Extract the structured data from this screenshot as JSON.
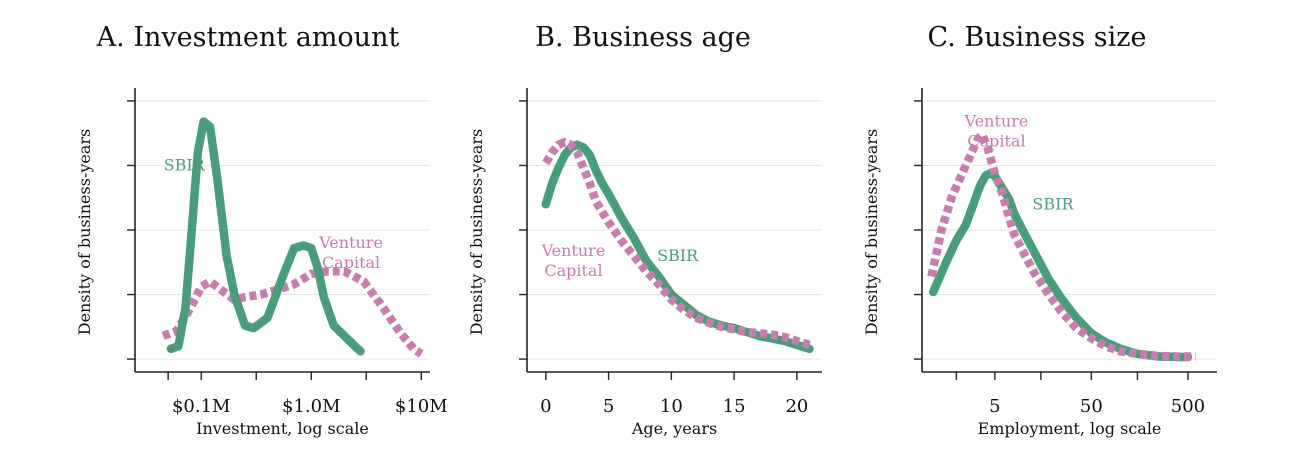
{
  "colors": {
    "sbir": "#4a9d7c",
    "venture_capital": "#c87caf"
  },
  "chart_data": [
    {
      "type": "line",
      "title": "A. Investment amount",
      "xlabel": "Investment, log scale",
      "ylabel": "Density of business-years",
      "x_scale": "log",
      "x_unit": "USD",
      "xlim": [
        25000,
        12000000
      ],
      "ylim": [
        -0.05,
        1.05
      ],
      "x_ticks": [
        {
          "value": 50000,
          "label": ""
        },
        {
          "value": 100000,
          "label": "$0.1M"
        },
        {
          "value": 316000,
          "label": ""
        },
        {
          "value": 1000000,
          "label": "$1.0M"
        },
        {
          "value": 3160000,
          "label": ""
        },
        {
          "value": 10000000,
          "label": "$10M"
        }
      ],
      "y_ticks": [
        0,
        0.25,
        0.5,
        0.75,
        1.0
      ],
      "grid": true,
      "series": [
        {
          "name": "SBIR",
          "key": "sbir",
          "style": "solid",
          "label_anchor": [
            0.07,
            0.73
          ],
          "points": [
            [
              0.053,
              0.04
            ],
            [
              0.062,
              0.05
            ],
            [
              0.072,
              0.2
            ],
            [
              0.082,
              0.5
            ],
            [
              0.093,
              0.8
            ],
            [
              0.105,
              0.92
            ],
            [
              0.12,
              0.9
            ],
            [
              0.14,
              0.7
            ],
            [
              0.17,
              0.4
            ],
            [
              0.2,
              0.25
            ],
            [
              0.25,
              0.13
            ],
            [
              0.3,
              0.12
            ],
            [
              0.4,
              0.16
            ],
            [
              0.55,
              0.32
            ],
            [
              0.7,
              0.43
            ],
            [
              0.85,
              0.44
            ],
            [
              1.0,
              0.43
            ],
            [
              1.15,
              0.35
            ],
            [
              1.3,
              0.24
            ],
            [
              1.6,
              0.13
            ],
            [
              2.0,
              0.09
            ],
            [
              2.5,
              0.05
            ],
            [
              2.8,
              0.03
            ]
          ]
        },
        {
          "name": "Venture Capital",
          "key": "venture_capital",
          "style": "dashed",
          "label_anchor": [
            2.3,
            0.43
          ],
          "points": [
            [
              0.045,
              0.09
            ],
            [
              0.06,
              0.11
            ],
            [
              0.08,
              0.2
            ],
            [
              0.1,
              0.28
            ],
            [
              0.12,
              0.3
            ],
            [
              0.15,
              0.27
            ],
            [
              0.2,
              0.23
            ],
            [
              0.25,
              0.24
            ],
            [
              0.35,
              0.25
            ],
            [
              0.5,
              0.27
            ],
            [
              0.7,
              0.29
            ],
            [
              1.0,
              0.33
            ],
            [
              1.4,
              0.34
            ],
            [
              2.0,
              0.34
            ],
            [
              3.0,
              0.3
            ],
            [
              4.5,
              0.2
            ],
            [
              6.5,
              0.1
            ],
            [
              8.5,
              0.04
            ],
            [
              10.0,
              0.02
            ]
          ]
        }
      ]
    },
    {
      "type": "line",
      "title": "B. Business age",
      "xlabel": "Age, years",
      "ylabel": "Density of business-years",
      "xlim": [
        -1.5,
        22
      ],
      "ylim": [
        -0.05,
        1.05
      ],
      "x_ticks": [
        {
          "value": 0,
          "label": "0"
        },
        {
          "value": 5,
          "label": "5"
        },
        {
          "value": 10,
          "label": "10"
        },
        {
          "value": 15,
          "label": "15"
        },
        {
          "value": 20,
          "label": "20"
        }
      ],
      "y_ticks": [
        0,
        0.25,
        0.5,
        0.75,
        1.0
      ],
      "grid": true,
      "series": [
        {
          "name": "SBIR",
          "key": "sbir",
          "style": "solid",
          "label_anchor": [
            10.5,
            0.38
          ],
          "points": [
            [
              0,
              0.6
            ],
            [
              0.5,
              0.68
            ],
            [
              1,
              0.74
            ],
            [
              1.5,
              0.79
            ],
            [
              2,
              0.82
            ],
            [
              2.5,
              0.83
            ],
            [
              3,
              0.82
            ],
            [
              3.5,
              0.79
            ],
            [
              4,
              0.73
            ],
            [
              4.5,
              0.68
            ],
            [
              5,
              0.64
            ],
            [
              6,
              0.55
            ],
            [
              7,
              0.47
            ],
            [
              8,
              0.38
            ],
            [
              9,
              0.32
            ],
            [
              10,
              0.25
            ],
            [
              11,
              0.21
            ],
            [
              12,
              0.17
            ],
            [
              13,
              0.145
            ],
            [
              14,
              0.13
            ],
            [
              15,
              0.12
            ],
            [
              16,
              0.105
            ],
            [
              17,
              0.09
            ],
            [
              18,
              0.08
            ],
            [
              19,
              0.07
            ],
            [
              20,
              0.055
            ],
            [
              21,
              0.04
            ]
          ]
        },
        {
          "name": "Venture Capital",
          "key": "venture_capital",
          "style": "dashed",
          "label_anchor": [
            2.2,
            0.4
          ],
          "points": [
            [
              0,
              0.76
            ],
            [
              0.5,
              0.8
            ],
            [
              1,
              0.83
            ],
            [
              1.5,
              0.84
            ],
            [
              2,
              0.83
            ],
            [
              2.5,
              0.8
            ],
            [
              3,
              0.74
            ],
            [
              3.5,
              0.68
            ],
            [
              4,
              0.61
            ],
            [
              5,
              0.53
            ],
            [
              6,
              0.46
            ],
            [
              7,
              0.4
            ],
            [
              8,
              0.34
            ],
            [
              9,
              0.29
            ],
            [
              10,
              0.23
            ],
            [
              11,
              0.19
            ],
            [
              12,
              0.16
            ],
            [
              13,
              0.14
            ],
            [
              14,
              0.125
            ],
            [
              15,
              0.115
            ],
            [
              16,
              0.105
            ],
            [
              17,
              0.1
            ],
            [
              18,
              0.095
            ],
            [
              19,
              0.085
            ],
            [
              20,
              0.07
            ],
            [
              21,
              0.055
            ]
          ]
        }
      ]
    },
    {
      "type": "line",
      "title": "C. Business size",
      "xlabel": "Employment, log scale",
      "ylabel": "Density of business-years",
      "x_scale": "log",
      "xlim": [
        0.88,
        1000
      ],
      "ylim": [
        -0.05,
        1.05
      ],
      "x_ticks": [
        {
          "value": 2,
          "label": ""
        },
        {
          "value": 5,
          "label": "5"
        },
        {
          "value": 15,
          "label": ""
        },
        {
          "value": 50,
          "label": "50"
        },
        {
          "value": 150,
          "label": ""
        },
        {
          "value": 500,
          "label": "500"
        }
      ],
      "y_ticks": [
        0,
        0.25,
        0.5,
        0.75,
        1.0
      ],
      "grid": true,
      "series": [
        {
          "name": "SBIR",
          "key": "sbir",
          "style": "solid",
          "label_anchor": [
            20,
            0.58
          ],
          "points": [
            [
              1.15,
              0.26
            ],
            [
              1.5,
              0.36
            ],
            [
              2,
              0.46
            ],
            [
              2.5,
              0.52
            ],
            [
              3,
              0.6
            ],
            [
              3.5,
              0.67
            ],
            [
              4,
              0.71
            ],
            [
              4.5,
              0.72
            ],
            [
              5,
              0.71
            ],
            [
              6,
              0.66
            ],
            [
              7,
              0.62
            ],
            [
              8,
              0.56
            ],
            [
              10,
              0.49
            ],
            [
              13,
              0.41
            ],
            [
              18,
              0.31
            ],
            [
              25,
              0.23
            ],
            [
              35,
              0.16
            ],
            [
              50,
              0.1
            ],
            [
              70,
              0.065
            ],
            [
              100,
              0.04
            ],
            [
              150,
              0.02
            ],
            [
              250,
              0.01
            ],
            [
              400,
              0.008
            ],
            [
              500,
              0.008
            ]
          ]
        },
        {
          "name": "Venture Capital",
          "key": "venture_capital",
          "style": "dashed",
          "label_anchor": [
            5.2,
            0.9
          ],
          "points": [
            [
              1.1,
              0.32
            ],
            [
              1.4,
              0.5
            ],
            [
              1.8,
              0.63
            ],
            [
              2.3,
              0.72
            ],
            [
              2.8,
              0.79
            ],
            [
              3.3,
              0.85
            ],
            [
              3.7,
              0.87
            ],
            [
              4.2,
              0.82
            ],
            [
              5,
              0.72
            ],
            [
              6,
              0.64
            ],
            [
              7,
              0.55
            ],
            [
              8,
              0.48
            ],
            [
              10,
              0.41
            ],
            [
              13,
              0.33
            ],
            [
              18,
              0.25
            ],
            [
              25,
              0.18
            ],
            [
              35,
              0.12
            ],
            [
              50,
              0.08
            ],
            [
              70,
              0.05
            ],
            [
              100,
              0.03
            ],
            [
              150,
              0.02
            ],
            [
              250,
              0.012
            ],
            [
              400,
              0.01
            ],
            [
              600,
              0.01
            ]
          ]
        }
      ]
    }
  ]
}
